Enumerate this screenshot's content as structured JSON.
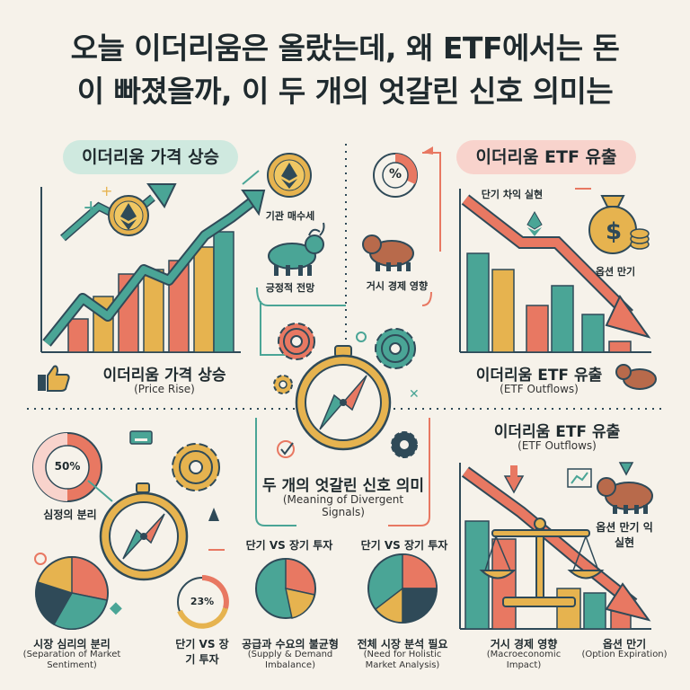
{
  "title": {
    "line1": "오늘 이더리움은 올랐는데, 왜 ETF에서는 돈",
    "line2": "이 빠졌을까, 이 두 개의 엇갈린 신호 의미는"
  },
  "top_left": {
    "pill": "이더리움 가격 상승",
    "label": "이더리움 가격 상승",
    "sub": "(Price Rise)",
    "icon_labels": {
      "institutional": "기관 매수세",
      "outlook": "긍정적 전망"
    }
  },
  "top_right": {
    "pill": "이더리움 ETF 유출",
    "label": "이더리움 ETF 유출",
    "sub": "(ETF Outflows)",
    "percent_symbol": "%",
    "icon_labels": {
      "profit": "단기 차익 실현",
      "macro": "거시 경제 영향",
      "options": "옵션 만기"
    }
  },
  "center": {
    "label": "두 개의 엇갈린 신호 의미",
    "sub": "(Meaning of Divergent Signals)"
  },
  "bottom_left": {
    "donut_value": "50%",
    "donut_label": "심정의 분리",
    "pie_small_value": "23%",
    "sentiment_label": "시장 심리의 분리",
    "sentiment_sub": "(Separation of Market Sentiment)",
    "short_long_label": "단기 VS 장기 투자"
  },
  "bottom_mid": {
    "short_long_label": "단기 VS 장기 투자",
    "supply_label": "공급과 수요의 불균형",
    "supply_sub": "(Supply & Demand Imbalance)",
    "short_long_label2": "단기 VS 장기 투자",
    "holistic_label": "전체 시장 분석 필요",
    "holistic_sub": "(Need for Holistic Market Analysis)"
  },
  "bottom_right": {
    "label": "이더리움 ETF 유출",
    "sub": "(ETF Outflows)",
    "profit_label": "옵션 만기 익 실현",
    "macro_label": "거시 경제 영향",
    "macro_sub": "(Macroeconomic Impact)",
    "options_label": "옵션 만기",
    "options_sub": "(Option Expiration)"
  },
  "colors": {
    "teal": "#4aa596",
    "coral": "#e87862",
    "gold": "#e6b34f",
    "navy": "#2f4a58",
    "mint": "#cfe9df",
    "pink": "#f8d3cc"
  }
}
